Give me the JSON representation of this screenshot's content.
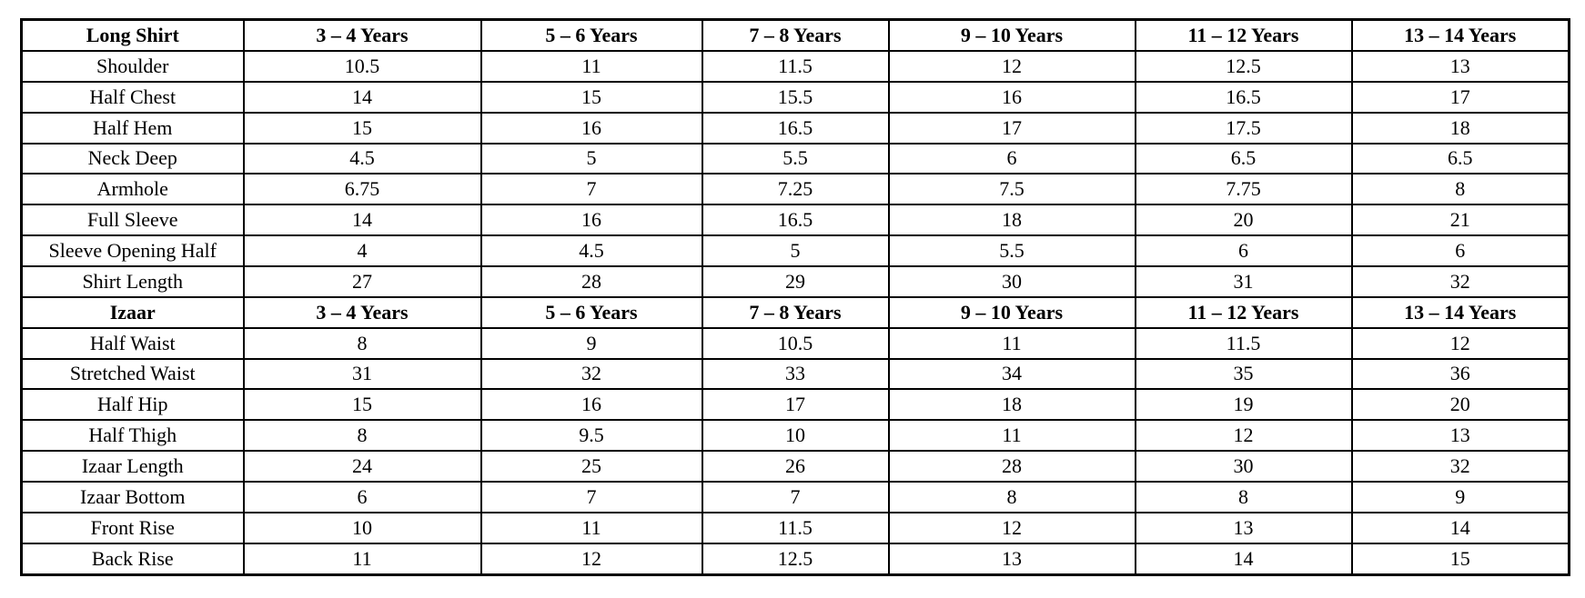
{
  "page": {
    "background_color": "#ffffff",
    "text_color": "#000000",
    "border_color": "#000000"
  },
  "size_chart": {
    "age_columns": [
      "3 – 4 Years",
      "5 – 6 Years",
      "7 – 8 Years",
      "9 – 10 Years",
      "11 – 12 Years",
      "13 – 14 Years"
    ],
    "sections": [
      {
        "title": "Long Shirt",
        "rows": [
          {
            "label": "Shoulder",
            "values": [
              "10.5",
              "11",
              "11.5",
              "12",
              "12.5",
              "13"
            ]
          },
          {
            "label": "Half Chest",
            "values": [
              "14",
              "15",
              "15.5",
              "16",
              "16.5",
              "17"
            ]
          },
          {
            "label": "Half Hem",
            "values": [
              "15",
              "16",
              "16.5",
              "17",
              "17.5",
              "18"
            ]
          },
          {
            "label": "Neck Deep",
            "values": [
              "4.5",
              "5",
              "5.5",
              "6",
              "6.5",
              "6.5"
            ]
          },
          {
            "label": "Armhole",
            "values": [
              "6.75",
              "7",
              "7.25",
              "7.5",
              "7.75",
              "8"
            ]
          },
          {
            "label": "Full Sleeve",
            "values": [
              "14",
              "16",
              "16.5",
              "18",
              "20",
              "21"
            ]
          },
          {
            "label": "Sleeve Opening Half",
            "values": [
              "4",
              "4.5",
              "5",
              "5.5",
              "6",
              "6"
            ]
          },
          {
            "label": "Shirt Length",
            "values": [
              "27",
              "28",
              "29",
              "30",
              "31",
              "32"
            ]
          }
        ]
      },
      {
        "title": "Izaar",
        "rows": [
          {
            "label": "Half Waist",
            "values": [
              "8",
              "9",
              "10.5",
              "11",
              "11.5",
              "12"
            ]
          },
          {
            "label": "Stretched Waist",
            "values": [
              "31",
              "32",
              "33",
              "34",
              "35",
              "36"
            ]
          },
          {
            "label": "Half Hip",
            "values": [
              "15",
              "16",
              "17",
              "18",
              "19",
              "20"
            ]
          },
          {
            "label": "Half Thigh",
            "values": [
              "8",
              "9.5",
              "10",
              "11",
              "12",
              "13"
            ]
          },
          {
            "label": "Izaar Length",
            "values": [
              "24",
              "25",
              "26",
              "28",
              "30",
              "32"
            ]
          },
          {
            "label": "Izaar Bottom",
            "values": [
              "6",
              "7",
              "7",
              "8",
              "8",
              "9"
            ]
          },
          {
            "label": "Front Rise",
            "values": [
              "10",
              "11",
              "11.5",
              "12",
              "13",
              "14"
            ]
          },
          {
            "label": "Back Rise",
            "values": [
              "11",
              "12",
              "12.5",
              "13",
              "14",
              "15"
            ]
          }
        ]
      }
    ]
  }
}
